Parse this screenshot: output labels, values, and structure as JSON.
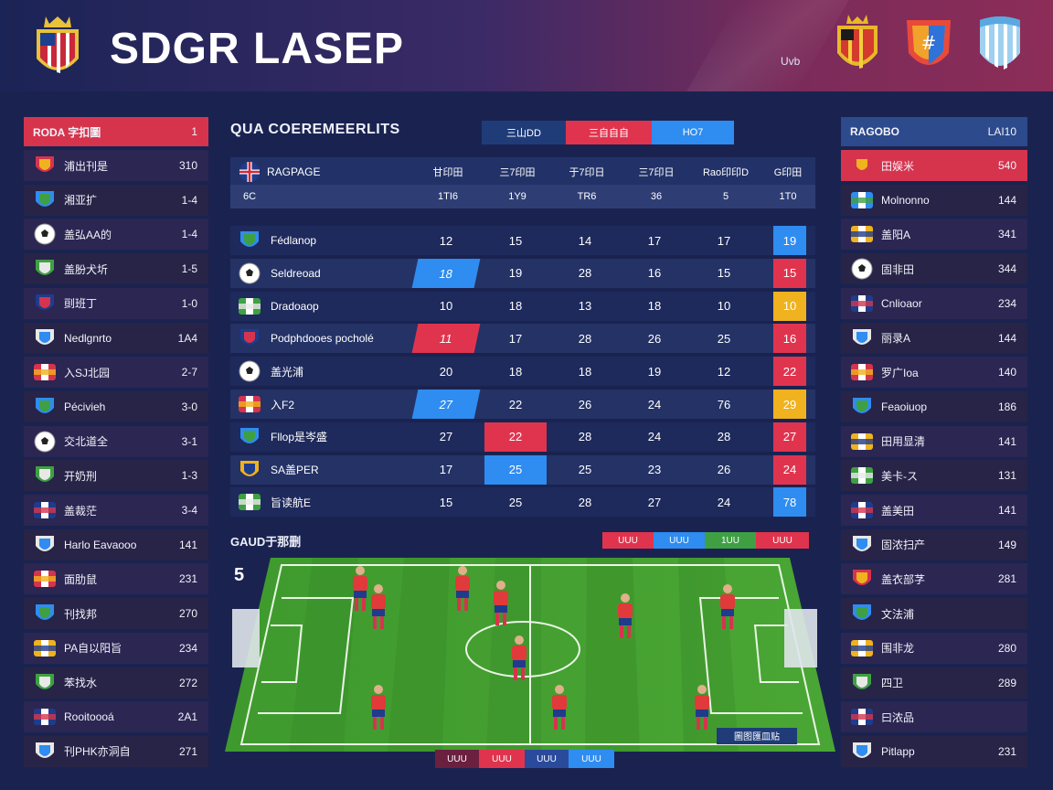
{
  "header": {
    "title": "SDGR LASEP",
    "small_label": "Uvb",
    "colors": {
      "accent_red": "#e0344e",
      "accent_blue": "#2f8cf0",
      "accent_yellow": "#f0b21e"
    }
  },
  "left_panel": {
    "header": {
      "label": "RODA 字扣圖",
      "value": "1"
    },
    "items": [
      {
        "icon": "crest-icon",
        "label": "浦出刊是",
        "value": "310"
      },
      {
        "icon": "crest-icon",
        "label": "湘亚扩",
        "value": "1-4"
      },
      {
        "icon": "ball-icon",
        "label": "盖弘AA的",
        "value": "1-4"
      },
      {
        "icon": "crest-icon",
        "label": "盖肦犬圻",
        "value": "1-5"
      },
      {
        "icon": "crest-icon",
        "label": "刯班丁",
        "value": "1-0"
      },
      {
        "icon": "crest-icon",
        "label": "Nedlgnrto",
        "value": "1A4"
      },
      {
        "icon": "flag-icon",
        "label": "入SJ北园",
        "value": "2-7"
      },
      {
        "icon": "crest-icon",
        "label": "Pécivieh",
        "value": "3-0"
      },
      {
        "icon": "ball-icon",
        "label": "交北道全",
        "value": "3-1"
      },
      {
        "icon": "crest-icon",
        "label": "开奶刑",
        "value": "1-3"
      },
      {
        "icon": "flag-icon",
        "label": "盖裁茫",
        "value": "3-4"
      },
      {
        "icon": "crest-icon",
        "label": "Harlo Eavaooo",
        "value": "141"
      },
      {
        "icon": "flag-icon",
        "label": "面肋鼠",
        "value": "231"
      },
      {
        "icon": "crest-icon",
        "label": "刊找邦",
        "value": "270"
      },
      {
        "icon": "flag-icon",
        "label": "PA自以阳旨",
        "value": "234"
      },
      {
        "icon": "crest-icon",
        "label": "苯找水",
        "value": "272"
      },
      {
        "icon": "flag-icon",
        "label": "Rooitoooá",
        "value": "2A1"
      },
      {
        "icon": "crest-icon",
        "label": "刊PHK亦洞自",
        "value": "271"
      }
    ]
  },
  "center": {
    "title": "QUA COEREMEERLITS",
    "tabs": [
      {
        "label": "三山DD",
        "color": "#1f3c78"
      },
      {
        "label": "三自自自",
        "color": "#e0344e"
      },
      {
        "label": "HO7",
        "color": "#2f8cf0"
      }
    ],
    "table_header": {
      "team_label": "RAGPAGE",
      "sub_label": "6C",
      "columns": [
        "甘印田",
        "三7印田",
        "于7印日",
        "三7印日",
        "Rao印印D",
        "G印田"
      ],
      "sub_values": [
        "1TI6",
        "1Y9",
        "TR6",
        "36",
        "5",
        "1T0"
      ]
    },
    "rows": [
      {
        "icon": "crest-icon",
        "name": "Fédlanop",
        "values": [
          "12",
          "15",
          "14",
          "17",
          "17",
          "19"
        ],
        "highlight": {
          "col": 5,
          "color": "#2f8cf0"
        }
      },
      {
        "icon": "ball-icon",
        "name": "Seldreoad",
        "values": [
          "18",
          "19",
          "28",
          "16",
          "15",
          "15"
        ],
        "highlight": {
          "col": 0,
          "color": "#2f8cf0"
        },
        "highlight2": {
          "col": 5,
          "color": "#e0344e"
        }
      },
      {
        "icon": "flag-icon",
        "name": "Dradoaop",
        "values": [
          "10",
          "18",
          "13",
          "18",
          "10",
          "10"
        ],
        "highlight": {
          "col": 5,
          "color": "#f0b21e"
        }
      },
      {
        "icon": "crest-icon",
        "name": "Podphdooes pocholé",
        "values": [
          "11",
          "17",
          "28",
          "26",
          "25",
          "16"
        ],
        "highlight": {
          "col": 0,
          "color": "#e0344e"
        },
        "highlight2": {
          "col": 5,
          "color": "#e0344e"
        }
      },
      {
        "icon": "ball-icon",
        "name": "盖光浦",
        "values": [
          "20",
          "18",
          "18",
          "19",
          "12",
          "22"
        ],
        "highlight": {
          "col": 5,
          "color": "#e0344e"
        }
      },
      {
        "icon": "flag-icon",
        "name": "入F2",
        "values": [
          "27",
          "22",
          "26",
          "24",
          "76",
          "29"
        ],
        "highlight": {
          "col": 0,
          "color": "#2f8cf0"
        },
        "highlight2": {
          "col": 5,
          "color": "#f0b21e"
        }
      },
      {
        "icon": "crest-icon",
        "name": "Fllop是岑盛",
        "values": [
          "27",
          "22",
          "28",
          "24",
          "28",
          "27"
        ],
        "highlight": {
          "col": 1,
          "color": "#e0344e"
        },
        "highlight2": {
          "col": 5,
          "color": "#e0344e"
        }
      },
      {
        "icon": "crest-icon",
        "name": "SA盖PER",
        "values": [
          "17",
          "25",
          "25",
          "23",
          "26",
          "24"
        ],
        "highlight": {
          "col": 1,
          "color": "#2f8cf0"
        },
        "highlight2": {
          "col": 5,
          "color": "#e0344e"
        }
      },
      {
        "icon": "flag-icon",
        "name": "旨读航E",
        "values": [
          "15",
          "25",
          "28",
          "27",
          "24",
          "78"
        ],
        "highlight": {
          "col": 5,
          "color": "#2f8cf0"
        }
      }
    ],
    "formation": {
      "title": "GAUD于那删",
      "corner_label": "5",
      "legend": [
        {
          "label": "UUU",
          "color": "#e0344e"
        },
        {
          "label": "UUU",
          "color": "#2f8cf0"
        },
        {
          "label": "1UU",
          "color": "#3fa043"
        },
        {
          "label": "UUU",
          "color": "#e0344e"
        }
      ],
      "bottom_tabs": [
        {
          "label": "UUU",
          "color": "#6b2040"
        },
        {
          "label": "UUU",
          "color": "#e0344e"
        },
        {
          "label": "UUU",
          "color": "#2a4a9c"
        },
        {
          "label": "UUU",
          "color": "#2f8cf0"
        }
      ],
      "badge": "圖图匯皿贴",
      "players": 10
    }
  },
  "right_panel": {
    "header": {
      "label": "RAGOBO",
      "value": "LAI10"
    },
    "items": [
      {
        "icon": "crest-icon",
        "label": "田娱米",
        "value": "540",
        "active": true
      },
      {
        "icon": "flag-icon",
        "label": "Molnonno",
        "value": "144"
      },
      {
        "icon": "flag-icon",
        "label": "盖阳A",
        "value": "341"
      },
      {
        "icon": "ball-icon",
        "label": "固非田",
        "value": "344"
      },
      {
        "icon": "flag-icon",
        "label": "Cnlioaor",
        "value": "234"
      },
      {
        "icon": "crest-icon",
        "label": "丽录A",
        "value": "144"
      },
      {
        "icon": "flag-icon",
        "label": "罗广Ioa",
        "value": "140"
      },
      {
        "icon": "crest-icon",
        "label": "Feaoiuop",
        "value": "186"
      },
      {
        "icon": "flag-icon",
        "label": "田用显清",
        "value": "141"
      },
      {
        "icon": "flag-icon",
        "label": "美卡-ス",
        "value": "131"
      },
      {
        "icon": "flag-icon",
        "label": "盖美田",
        "value": "141"
      },
      {
        "icon": "crest-icon",
        "label": "固浓扫产",
        "value": "149"
      },
      {
        "icon": "crest-icon",
        "label": "盖衣部芓",
        "value": "281"
      },
      {
        "icon": "crest-icon",
        "label": "文法浦",
        "value": ""
      },
      {
        "icon": "flag-icon",
        "label": "围非龙",
        "value": "280"
      },
      {
        "icon": "crest-icon",
        "label": "四卫",
        "value": "289"
      },
      {
        "icon": "flag-icon",
        "label": "曰浓品",
        "value": ""
      },
      {
        "icon": "crest-icon",
        "label": "Pitlapp",
        "value": "231"
      }
    ]
  }
}
